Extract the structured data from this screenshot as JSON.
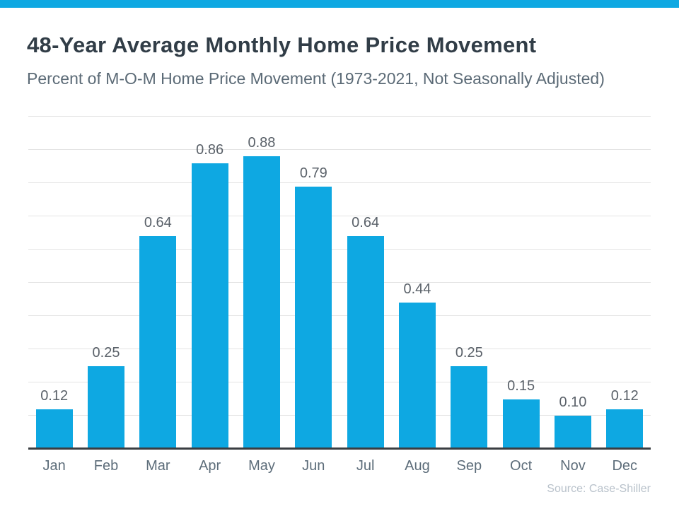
{
  "header": {
    "title": "48-Year Average Monthly Home Price Movement",
    "subtitle": "Percent of M-O-M Home Price Movement (1973-2021, Not Seasonally Adjusted)"
  },
  "footer": {
    "source": "Source: Case-Shiller"
  },
  "chart_data": {
    "type": "bar",
    "title": "48-Year Average Monthly Home Price Movement",
    "subtitle": "Percent of M-O-M Home Price Movement (1973-2021, Not Seasonally Adjusted)",
    "categories": [
      "Jan",
      "Feb",
      "Mar",
      "Apr",
      "May",
      "Jun",
      "Jul",
      "Aug",
      "Sep",
      "Oct",
      "Nov",
      "Dec"
    ],
    "values": [
      0.12,
      0.25,
      0.64,
      0.86,
      0.88,
      0.79,
      0.64,
      0.44,
      0.25,
      0.15,
      0.1,
      0.12
    ],
    "value_labels": [
      "0.12",
      "0.25",
      "0.64",
      "0.86",
      "0.88",
      "0.79",
      "0.64",
      "0.44",
      "0.25",
      "0.15",
      "0.10",
      "0.12"
    ],
    "xlabel": "",
    "ylabel": "",
    "ylim": [
      0,
      1.0
    ],
    "gridline_step": 0.1,
    "grid": "horizontal",
    "legend": "none",
    "bar_color": "#0EA8E2",
    "source": "Source: Case-Shiller"
  },
  "colors": {
    "accent": "#0EA8E2",
    "bar": "#0EA8E2",
    "title": "#313D47",
    "subtitle": "#5B6A76",
    "value_label": "#5A6169",
    "month_label": "#5D6D7A",
    "source": "#B9C2CB",
    "gridline": "#E3E3E3",
    "axis_line": "#3A3E42"
  }
}
